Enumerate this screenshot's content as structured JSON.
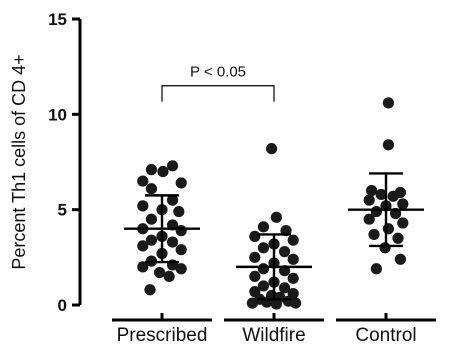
{
  "chart_data": {
    "type": "scatter",
    "ylabel": "Percent Th1 cells of CD 4+",
    "xlabel": "",
    "ylim": [
      0,
      15
    ],
    "yticks": [
      0,
      5,
      10,
      15
    ],
    "categories": [
      "Prescribed",
      "Wildfire",
      "Control"
    ],
    "groups": [
      {
        "name": "Prescribed",
        "mean": 4.0,
        "sd_upper": 5.75,
        "sd_lower": 2.25,
        "points": [
          {
            "offset": 0.22,
            "y": 7.3
          },
          {
            "offset": -0.22,
            "y": 7.1
          },
          {
            "offset": 0.02,
            "y": 7.0
          },
          {
            "offset": -0.4,
            "y": 6.5
          },
          {
            "offset": 0.4,
            "y": 6.4
          },
          {
            "offset": -0.22,
            "y": 6.1
          },
          {
            "offset": 0.22,
            "y": 5.5
          },
          {
            "offset": -0.4,
            "y": 5.2
          },
          {
            "offset": 0.0,
            "y": 5.0
          },
          {
            "offset": 0.35,
            "y": 4.9
          },
          {
            "offset": -0.22,
            "y": 4.5
          },
          {
            "offset": 0.22,
            "y": 4.2
          },
          {
            "offset": -0.4,
            "y": 4.0
          },
          {
            "offset": 0.4,
            "y": 3.9
          },
          {
            "offset": 0.0,
            "y": 3.6
          },
          {
            "offset": -0.22,
            "y": 3.4
          },
          {
            "offset": 0.22,
            "y": 3.3
          },
          {
            "offset": -0.4,
            "y": 3.1
          },
          {
            "offset": 0.4,
            "y": 2.9
          },
          {
            "offset": 0.0,
            "y": 2.7
          },
          {
            "offset": -0.22,
            "y": 2.3
          },
          {
            "offset": 0.22,
            "y": 2.1
          },
          {
            "offset": -0.4,
            "y": 2.0
          },
          {
            "offset": 0.4,
            "y": 1.9
          },
          {
            "offset": -0.05,
            "y": 1.7
          },
          {
            "offset": 0.15,
            "y": 1.5
          },
          {
            "offset": -0.25,
            "y": 0.8
          }
        ]
      },
      {
        "name": "Wildfire",
        "mean": 2.0,
        "sd_upper": 3.7,
        "sd_lower": 0.3,
        "points": [
          {
            "offset": -0.05,
            "y": 8.2
          },
          {
            "offset": 0.05,
            "y": 4.6
          },
          {
            "offset": -0.22,
            "y": 4.1
          },
          {
            "offset": 0.25,
            "y": 3.9
          },
          {
            "offset": -0.4,
            "y": 3.6
          },
          {
            "offset": 0.4,
            "y": 3.4
          },
          {
            "offset": 0.0,
            "y": 3.2
          },
          {
            "offset": -0.22,
            "y": 3.0
          },
          {
            "offset": 0.22,
            "y": 2.8
          },
          {
            "offset": -0.4,
            "y": 2.5
          },
          {
            "offset": 0.4,
            "y": 2.4
          },
          {
            "offset": 0.0,
            "y": 2.2
          },
          {
            "offset": -0.22,
            "y": 1.9
          },
          {
            "offset": 0.22,
            "y": 1.8
          },
          {
            "offset": -0.4,
            "y": 1.5
          },
          {
            "offset": 0.4,
            "y": 1.4
          },
          {
            "offset": 0.0,
            "y": 1.2
          },
          {
            "offset": -0.22,
            "y": 1.0
          },
          {
            "offset": 0.22,
            "y": 0.9
          },
          {
            "offset": -0.4,
            "y": 0.7
          },
          {
            "offset": 0.4,
            "y": 0.6
          },
          {
            "offset": -0.05,
            "y": 0.5
          },
          {
            "offset": 0.12,
            "y": 0.4
          },
          {
            "offset": -0.3,
            "y": 0.3
          },
          {
            "offset": 0.3,
            "y": 0.2
          },
          {
            "offset": -0.15,
            "y": 0.15
          },
          {
            "offset": 0.45,
            "y": 0.1
          },
          {
            "offset": -0.45,
            "y": 0.1
          },
          {
            "offset": 0.05,
            "y": 0.05
          }
        ]
      },
      {
        "name": "Control",
        "mean": 5.0,
        "sd_upper": 6.9,
        "sd_lower": 3.1,
        "points": [
          {
            "offset": 0.05,
            "y": 10.6
          },
          {
            "offset": 0.05,
            "y": 8.4
          },
          {
            "offset": -0.3,
            "y": 6.0
          },
          {
            "offset": 0.3,
            "y": 5.9
          },
          {
            "offset": -0.1,
            "y": 5.8
          },
          {
            "offset": 0.15,
            "y": 5.7
          },
          {
            "offset": -0.35,
            "y": 5.5
          },
          {
            "offset": 0.35,
            "y": 5.3
          },
          {
            "offset": 0.0,
            "y": 5.2
          },
          {
            "offset": -0.2,
            "y": 4.9
          },
          {
            "offset": 0.2,
            "y": 4.8
          },
          {
            "offset": -0.35,
            "y": 4.5
          },
          {
            "offset": 0.35,
            "y": 4.3
          },
          {
            "offset": 0.05,
            "y": 4.0
          },
          {
            "offset": -0.25,
            "y": 3.7
          },
          {
            "offset": 0.25,
            "y": 3.5
          },
          {
            "offset": -0.02,
            "y": 3.0
          },
          {
            "offset": 0.3,
            "y": 2.4
          },
          {
            "offset": -0.2,
            "y": 1.9
          }
        ]
      }
    ],
    "annotation": {
      "text": "P < 0.05",
      "from": "Prescribed",
      "to": "Wildfire",
      "y": 11.5
    },
    "colors": {
      "points": "#1a1a1a",
      "axis": "#000000"
    }
  }
}
